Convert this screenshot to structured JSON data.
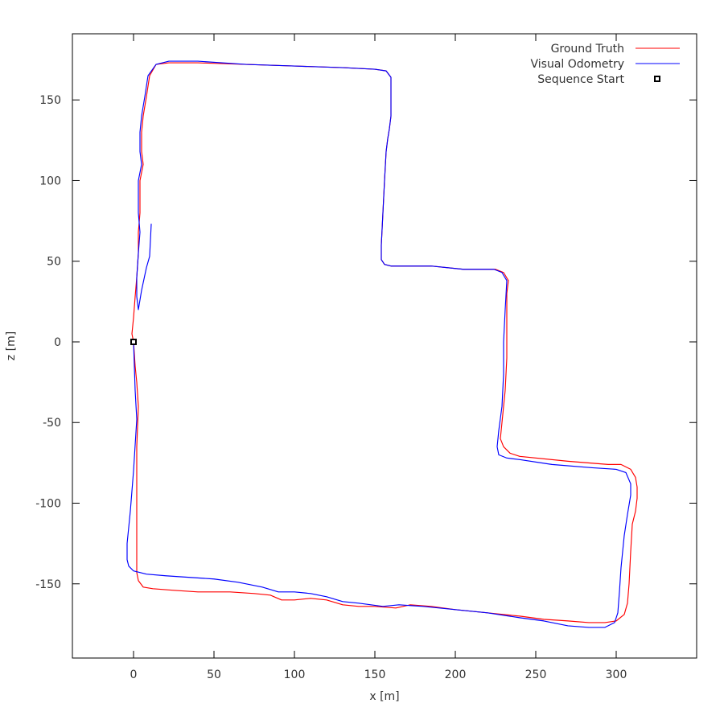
{
  "chart_data": {
    "type": "line",
    "title": "",
    "xlabel": "x [m]",
    "ylabel": "z [m]",
    "xlim": [
      -38,
      350
    ],
    "ylim": [
      -196,
      191
    ],
    "xticks": [
      0,
      50,
      100,
      150,
      200,
      250,
      300
    ],
    "yticks": [
      -150,
      -100,
      -50,
      0,
      50,
      100,
      150
    ],
    "grid": false,
    "legend_position": "top-right",
    "series": [
      {
        "name": "Ground Truth",
        "color": "#ff0000",
        "points": [
          [
            0,
            0
          ],
          [
            1,
            -15
          ],
          [
            2,
            -25
          ],
          [
            3,
            -40
          ],
          [
            2,
            -65
          ],
          [
            2,
            -90
          ],
          [
            2,
            -115
          ],
          [
            2,
            -130
          ],
          [
            2,
            -143
          ],
          [
            3,
            -148
          ],
          [
            6,
            -152
          ],
          [
            12,
            -153
          ],
          [
            25,
            -154
          ],
          [
            40,
            -155
          ],
          [
            50,
            -155
          ],
          [
            60,
            -155
          ],
          [
            75,
            -156
          ],
          [
            85,
            -157
          ],
          [
            92,
            -160
          ],
          [
            100,
            -160
          ],
          [
            110,
            -159
          ],
          [
            120,
            -160
          ],
          [
            130,
            -163
          ],
          [
            140,
            -164
          ],
          [
            150,
            -164
          ],
          [
            163,
            -165
          ],
          [
            172,
            -163
          ],
          [
            185,
            -164
          ],
          [
            200,
            -166
          ],
          [
            220,
            -168
          ],
          [
            240,
            -170
          ],
          [
            255,
            -172
          ],
          [
            270,
            -173
          ],
          [
            283,
            -174
          ],
          [
            293,
            -174
          ],
          [
            300,
            -173
          ],
          [
            305,
            -169
          ],
          [
            307,
            -162
          ],
          [
            308,
            -150
          ],
          [
            309,
            -130
          ],
          [
            310,
            -113
          ],
          [
            312,
            -105
          ],
          [
            313,
            -97
          ],
          [
            313,
            -90
          ],
          [
            312,
            -84
          ],
          [
            309,
            -79
          ],
          [
            303,
            -76
          ],
          [
            295,
            -76
          ],
          [
            270,
            -74
          ],
          [
            240,
            -71
          ],
          [
            234,
            -69
          ],
          [
            230,
            -65
          ],
          [
            228,
            -60
          ],
          [
            229,
            -50
          ],
          [
            231,
            -30
          ],
          [
            232,
            -10
          ],
          [
            232,
            10
          ],
          [
            232,
            30
          ],
          [
            233,
            38
          ],
          [
            230,
            43
          ],
          [
            225,
            45
          ],
          [
            205,
            45
          ],
          [
            185,
            47
          ],
          [
            172,
            47
          ],
          [
            160,
            47
          ],
          [
            156,
            48
          ],
          [
            154,
            51
          ],
          [
            154,
            60
          ],
          [
            155,
            80
          ],
          [
            156,
            100
          ],
          [
            157,
            118
          ],
          [
            158,
            126
          ],
          [
            159,
            132
          ],
          [
            160,
            140
          ],
          [
            160,
            155
          ],
          [
            160,
            164
          ],
          [
            157,
            168
          ],
          [
            150,
            169
          ],
          [
            130,
            170
          ],
          [
            100,
            171
          ],
          [
            70,
            172
          ],
          [
            40,
            173
          ],
          [
            22,
            173
          ],
          [
            14,
            172
          ],
          [
            10,
            165
          ],
          [
            8,
            152
          ],
          [
            6,
            140
          ],
          [
            5,
            130
          ],
          [
            5,
            118
          ],
          [
            6,
            110
          ],
          [
            4,
            100
          ],
          [
            4,
            88
          ],
          [
            4,
            80
          ],
          [
            3,
            68
          ],
          [
            3,
            55
          ],
          [
            2,
            40
          ],
          [
            1,
            28
          ],
          [
            0,
            15
          ],
          [
            -1,
            5
          ],
          [
            0,
            0
          ]
        ]
      },
      {
        "name": "Visual Odometry",
        "color": "#0000ff",
        "points": [
          [
            0,
            0
          ],
          [
            1,
            -30
          ],
          [
            2,
            -48
          ],
          [
            0,
            -80
          ],
          [
            -2,
            -105
          ],
          [
            -4,
            -125
          ],
          [
            -4,
            -135
          ],
          [
            -3,
            -139
          ],
          [
            0,
            -142
          ],
          [
            8,
            -144
          ],
          [
            20,
            -145
          ],
          [
            35,
            -146
          ],
          [
            50,
            -147
          ],
          [
            65,
            -149
          ],
          [
            80,
            -152
          ],
          [
            90,
            -155
          ],
          [
            100,
            -155
          ],
          [
            110,
            -156
          ],
          [
            120,
            -158
          ],
          [
            130,
            -161
          ],
          [
            140,
            -162
          ],
          [
            155,
            -164
          ],
          [
            165,
            -163
          ],
          [
            180,
            -164
          ],
          [
            200,
            -166
          ],
          [
            220,
            -168
          ],
          [
            240,
            -171
          ],
          [
            255,
            -173
          ],
          [
            270,
            -176
          ],
          [
            283,
            -177
          ],
          [
            293,
            -177
          ],
          [
            299,
            -174
          ],
          [
            301,
            -168
          ],
          [
            302,
            -155
          ],
          [
            303,
            -140
          ],
          [
            305,
            -120
          ],
          [
            307,
            -107
          ],
          [
            309,
            -95
          ],
          [
            309,
            -88
          ],
          [
            306,
            -81
          ],
          [
            300,
            -79
          ],
          [
            285,
            -78
          ],
          [
            260,
            -76
          ],
          [
            240,
            -73
          ],
          [
            232,
            -72
          ],
          [
            227,
            -70
          ],
          [
            226,
            -65
          ],
          [
            227,
            -55
          ],
          [
            229,
            -40
          ],
          [
            230,
            -20
          ],
          [
            230,
            0
          ],
          [
            231,
            20
          ],
          [
            232,
            38
          ],
          [
            229,
            43
          ],
          [
            224,
            45
          ],
          [
            205,
            45
          ],
          [
            185,
            47
          ],
          [
            172,
            47
          ],
          [
            160,
            47
          ],
          [
            156,
            48
          ],
          [
            154,
            51
          ],
          [
            154,
            60
          ],
          [
            155,
            80
          ],
          [
            156,
            100
          ],
          [
            157,
            118
          ],
          [
            158,
            126
          ],
          [
            159,
            132
          ],
          [
            160,
            140
          ],
          [
            160,
            155
          ],
          [
            160,
            164
          ],
          [
            157,
            168
          ],
          [
            150,
            169
          ],
          [
            130,
            170
          ],
          [
            100,
            171
          ],
          [
            70,
            172
          ],
          [
            40,
            174
          ],
          [
            22,
            174
          ],
          [
            14,
            172
          ],
          [
            9,
            165
          ],
          [
            7,
            152
          ],
          [
            5,
            140
          ],
          [
            4,
            130
          ],
          [
            4,
            118
          ],
          [
            5,
            110
          ],
          [
            3,
            100
          ],
          [
            3,
            88
          ],
          [
            3,
            80
          ],
          [
            4,
            68
          ],
          [
            3,
            55
          ],
          [
            2,
            40
          ],
          [
            2,
            28
          ],
          [
            3,
            20
          ],
          [
            5,
            32
          ],
          [
            8,
            46
          ],
          [
            10,
            53
          ],
          [
            11,
            73
          ]
        ]
      }
    ],
    "markers": [
      {
        "name": "Sequence Start",
        "x": 0,
        "y": 0,
        "color": "#000000"
      }
    ],
    "x_tick_labels": [
      "0",
      "50",
      "100",
      "150",
      "200",
      "250",
      "300"
    ],
    "y_tick_labels": [
      "-150",
      "-100",
      "-50",
      "0",
      "50",
      "100",
      "150"
    ]
  }
}
